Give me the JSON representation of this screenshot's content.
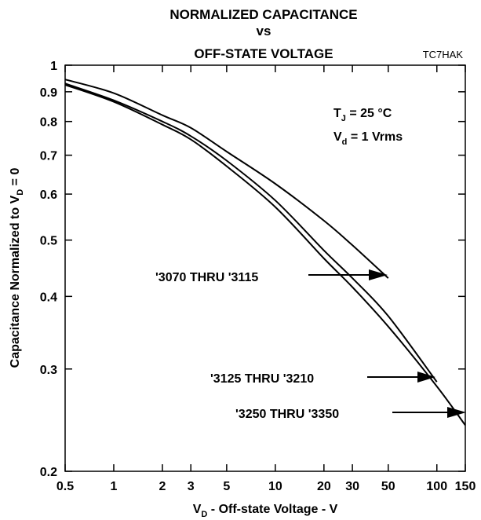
{
  "chart_data": {
    "type": "line",
    "title": [
      "NORMALIZED CAPACITANCE",
      "vs",
      "OFF-STATE VOLTAGE"
    ],
    "code": "TC7HAK",
    "xlabel": {
      "main": "V",
      "sub": "D",
      "rest": " - Off-state Voltage - V"
    },
    "ylabel": {
      "main": "Capacitance Normalized  to V",
      "sub": "D",
      "rest": " = 0"
    },
    "xscale": "log",
    "yscale": "log",
    "xlim": [
      0.5,
      150
    ],
    "ylim": [
      0.2,
      1
    ],
    "x_ticks": [
      0.5,
      1,
      2,
      3,
      5,
      10,
      20,
      30,
      50,
      100,
      150
    ],
    "x_tick_labels": [
      "0.5",
      "1",
      "2",
      "3",
      "5",
      "10",
      "20",
      "30",
      "50",
      "100",
      "150"
    ],
    "y_ticks": [
      0.2,
      0.3,
      0.4,
      0.5,
      0.6,
      0.7,
      0.8,
      0.9,
      1
    ],
    "y_tick_labels": [
      "0.2",
      "0.3",
      "0.4",
      "0.5",
      "0.6",
      "0.7",
      "0.8",
      "0.9",
      "1"
    ],
    "grid": false,
    "conditions": [
      {
        "main": "T",
        "sub": "J",
        "rest": " = 25 °C"
      },
      {
        "main": "V",
        "sub": "d",
        "rest": " = 1 Vrms"
      }
    ],
    "series": [
      {
        "name": "'3070 THRU '3115",
        "x": [
          0.5,
          1,
          2,
          3,
          5,
          10,
          20,
          30,
          50
        ],
        "y": [
          0.945,
          0.895,
          0.82,
          0.78,
          0.71,
          0.625,
          0.54,
          0.49,
          0.43
        ]
      },
      {
        "name": "'3125 THRU '3210",
        "x": [
          0.5,
          1,
          2,
          3,
          5,
          10,
          20,
          30,
          50,
          100
        ],
        "y": [
          0.93,
          0.87,
          0.8,
          0.755,
          0.685,
          0.585,
          0.48,
          0.43,
          0.37,
          0.285
        ]
      },
      {
        "name": "'3250 THRU '3350",
        "x": [
          0.5,
          1,
          2,
          3,
          5,
          10,
          20,
          30,
          50,
          100,
          150
        ],
        "y": [
          0.925,
          0.865,
          0.79,
          0.745,
          0.67,
          0.57,
          0.465,
          0.415,
          0.355,
          0.28,
          0.24
        ]
      }
    ]
  }
}
